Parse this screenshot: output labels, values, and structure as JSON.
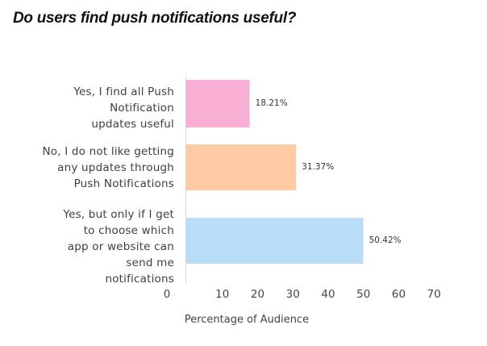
{
  "title": "Do users find push notifications useful?",
  "chart_data": {
    "type": "bar",
    "orientation": "horizontal",
    "title": "Do users find push notifications useful?",
    "xlabel": "Percentage of Audience",
    "ylabel": "",
    "xlim": [
      0,
      70
    ],
    "x_ticks": [
      "0",
      "10",
      "20",
      "30",
      "40",
      "50",
      "60",
      "70"
    ],
    "grid": false,
    "categories": [
      {
        "lines": [
          "Yes, I find all Push",
          "Notification",
          "updates useful"
        ],
        "value": 18.21,
        "value_label": "18.21%",
        "color": "#f9aed3"
      },
      {
        "lines": [
          "No, I do not like getting",
          "any updates through",
          "Push Notifications"
        ],
        "value": 31.37,
        "value_label": "31.37%",
        "color": "#ffcaa4"
      },
      {
        "lines": [
          "Yes, but only if I get",
          "to choose which",
          "app or website can",
          "send me",
          "notifications"
        ],
        "value": 50.42,
        "value_label": "50.42%",
        "color": "#b9dcf7"
      }
    ]
  }
}
